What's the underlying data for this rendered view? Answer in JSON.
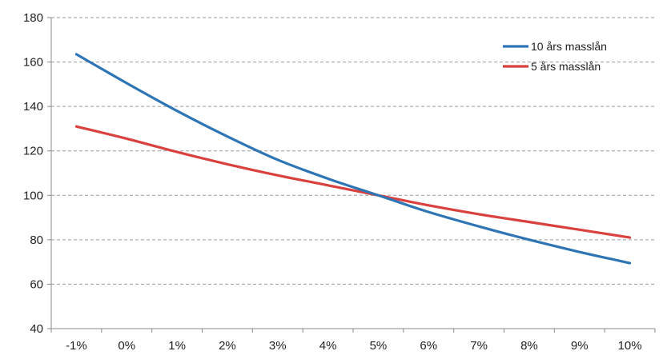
{
  "chart_data": {
    "type": "line",
    "categories": [
      "-1%",
      "0%",
      "1%",
      "2%",
      "3%",
      "4%",
      "5%",
      "6%",
      "7%",
      "8%",
      "9%",
      "10%"
    ],
    "series": [
      {
        "name": "10 års masslån",
        "color": "#2E75B6",
        "values": [
          163.5,
          150.5,
          138.0,
          126.5,
          116.0,
          107.5,
          100.0,
          92.5,
          86.0,
          80.0,
          74.5,
          69.5
        ]
      },
      {
        "name": "5 års masslån",
        "color": "#D9413F",
        "values": [
          131.0,
          125.5,
          119.5,
          114.0,
          109.0,
          104.5,
          100.0,
          95.5,
          91.5,
          88.0,
          84.5,
          81.0
        ]
      }
    ],
    "y_ticks": [
      "40",
      "60",
      "80",
      "100",
      "120",
      "140",
      "160",
      "180"
    ],
    "ylim": [
      40,
      180
    ],
    "grid": true,
    "legend_position": "top-right"
  }
}
